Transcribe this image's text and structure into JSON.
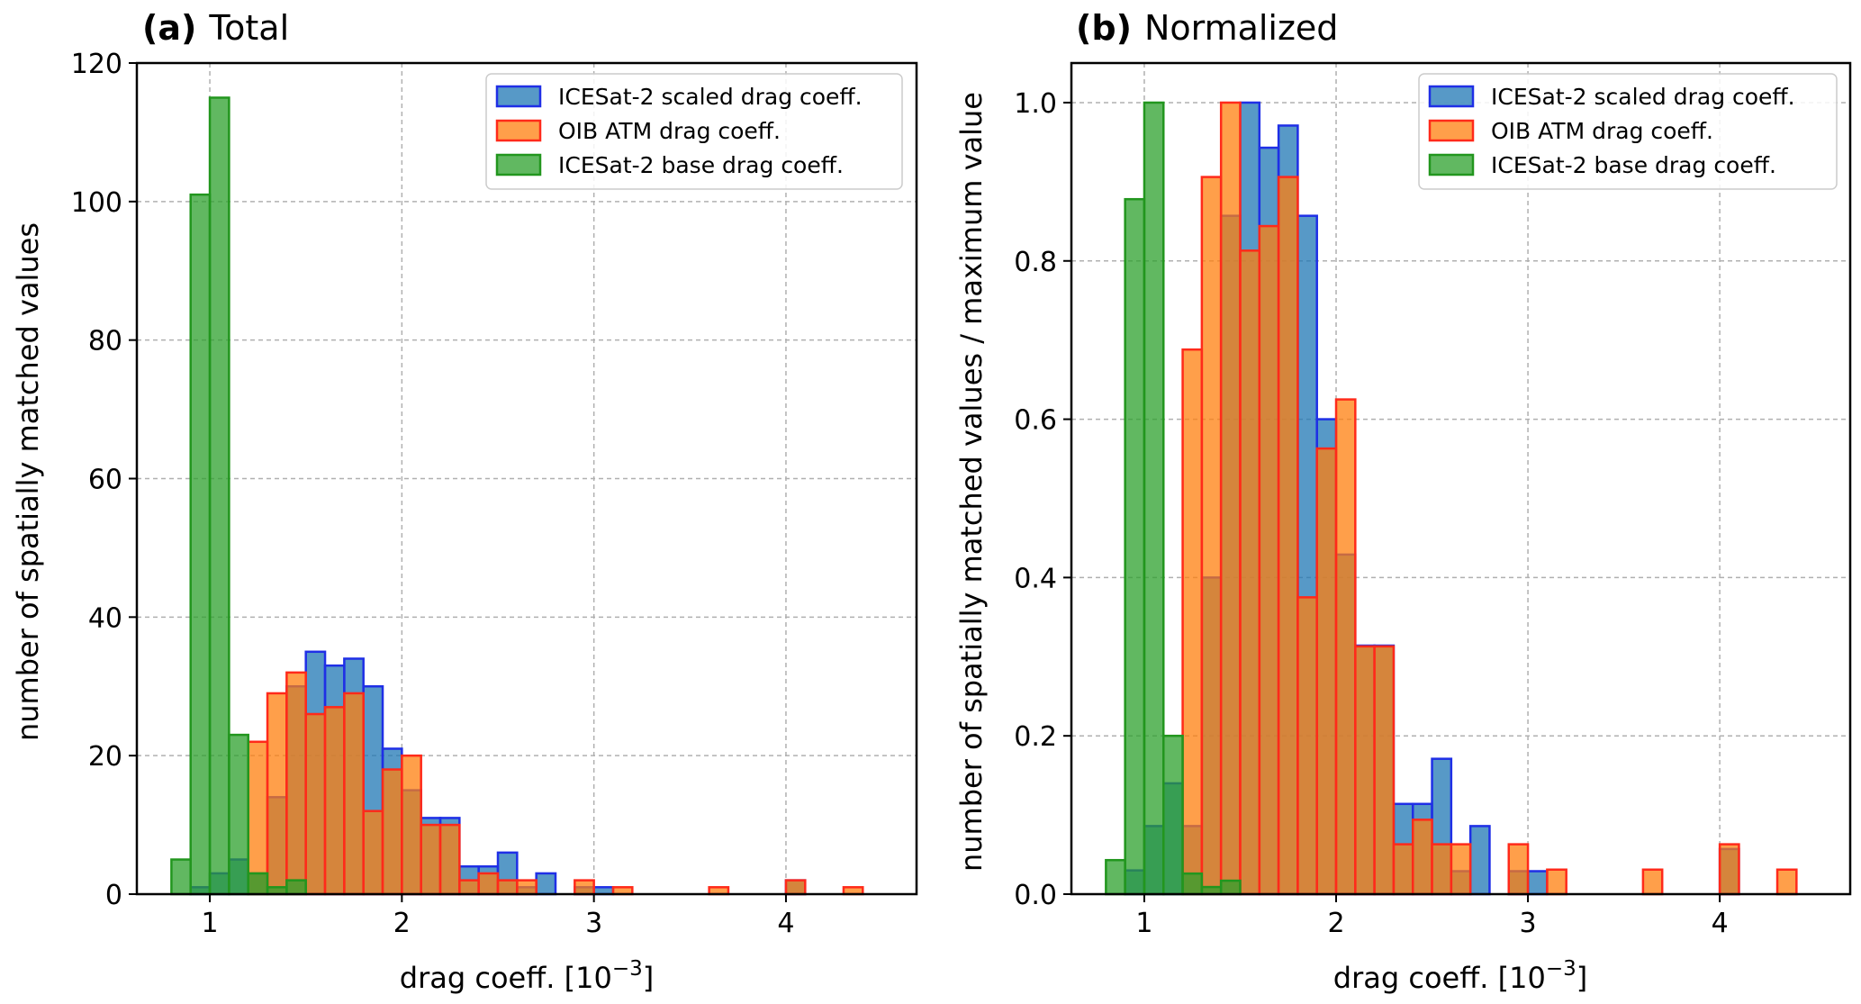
{
  "chart_data": [
    {
      "type": "histogram",
      "panel_label": "(a)",
      "title": "Total",
      "xlabel": "drag coeff. [10",
      "xlabel_exponent": "−3",
      "xlabel_close": "]",
      "ylabel": "number of spatially matched values",
      "xlim": [
        0.62,
        4.68
      ],
      "ylim": [
        0,
        120
      ],
      "xticks": [
        1,
        2,
        3,
        4
      ],
      "xtick_labels": [
        "1",
        "2",
        "3",
        "4"
      ],
      "yticks": [
        0,
        20,
        40,
        60,
        80,
        100,
        120
      ],
      "ytick_labels": [
        "0",
        "20",
        "40",
        "60",
        "80",
        "100",
        "120"
      ],
      "grid": true,
      "legend_position": "top-right",
      "series": [
        {
          "name": "ICESat-2 scaled drag coeff.",
          "fill": "#1f77b4",
          "edge": "#1f2fe6",
          "bin_edges": [
            0.8,
            0.9,
            1.0,
            1.1,
            1.2,
            1.3,
            1.4,
            1.5,
            1.6,
            1.7,
            1.8,
            1.9,
            2.0,
            2.1,
            2.2,
            2.3,
            2.4,
            2.5,
            2.6,
            2.7,
            2.8,
            2.9,
            3.0,
            3.1,
            3.2,
            3.3,
            3.4,
            3.5,
            3.6,
            3.7,
            3.8,
            3.9,
            4.0,
            4.1,
            4.2,
            4.3,
            4.4,
            4.5
          ],
          "counts": [
            0,
            1,
            3,
            5,
            3,
            14,
            30,
            35,
            33,
            34,
            30,
            21,
            15,
            11,
            11,
            4,
            4,
            6,
            1,
            3,
            0,
            1,
            1,
            0,
            0,
            0,
            0,
            0,
            0,
            0,
            0,
            0,
            2,
            0,
            0,
            0,
            0
          ]
        },
        {
          "name": "OIB ATM drag coeff.",
          "fill": "#ff7f0e",
          "edge": "#ff2a1a",
          "bin_edges": [
            0.8,
            0.9,
            1.0,
            1.1,
            1.2,
            1.3,
            1.4,
            1.5,
            1.6,
            1.7,
            1.8,
            1.9,
            2.0,
            2.1,
            2.2,
            2.3,
            2.4,
            2.5,
            2.6,
            2.7,
            2.8,
            2.9,
            3.0,
            3.1,
            3.2,
            3.3,
            3.4,
            3.5,
            3.6,
            3.7,
            3.8,
            3.9,
            4.0,
            4.1,
            4.2,
            4.3,
            4.4,
            4.5
          ],
          "counts": [
            0,
            0,
            0,
            0,
            22,
            29,
            32,
            26,
            27,
            29,
            12,
            18,
            20,
            10,
            10,
            2,
            3,
            2,
            2,
            0,
            0,
            2,
            0,
            1,
            0,
            0,
            0,
            0,
            1,
            0,
            0,
            0,
            2,
            0,
            0,
            1,
            0
          ]
        },
        {
          "name": "ICESat-2 base drag coeff.",
          "fill": "#2ca02c",
          "edge": "#22961e",
          "bin_edges": [
            0.8,
            0.9,
            1.0,
            1.1,
            1.2,
            1.3,
            1.4,
            1.5
          ],
          "counts": [
            5,
            101,
            115,
            23,
            3,
            1,
            2
          ]
        }
      ]
    },
    {
      "type": "histogram",
      "panel_label": "(b)",
      "title": "Normalized",
      "xlabel": "drag coeff. [10",
      "xlabel_exponent": "−3",
      "xlabel_close": "]",
      "ylabel": "number of spatially matched values / maximum value",
      "xlim": [
        0.62,
        4.68
      ],
      "ylim": [
        0,
        1.05
      ],
      "xticks": [
        1,
        2,
        3,
        4
      ],
      "xtick_labels": [
        "1",
        "2",
        "3",
        "4"
      ],
      "yticks": [
        0,
        0.2,
        0.4,
        0.6,
        0.8,
        1.0
      ],
      "ytick_labels": [
        "0.0",
        "0.2",
        "0.4",
        "0.6",
        "0.8",
        "1.0"
      ],
      "grid": true,
      "legend_position": "top-right",
      "series": [
        {
          "name": "ICESat-2 scaled drag coeff.",
          "fill": "#1f77b4",
          "edge": "#1f2fe6",
          "bin_edges": [
            0.8,
            0.9,
            1.0,
            1.1,
            1.2,
            1.3,
            1.4,
            1.5,
            1.6,
            1.7,
            1.8,
            1.9,
            2.0,
            2.1,
            2.2,
            2.3,
            2.4,
            2.5,
            2.6,
            2.7,
            2.8,
            2.9,
            3.0,
            3.1,
            3.2,
            3.3,
            3.4,
            3.5,
            3.6,
            3.7,
            3.8,
            3.9,
            4.0,
            4.1,
            4.2,
            4.3,
            4.4,
            4.5
          ],
          "counts": [
            0,
            0.03,
            0.086,
            0.14,
            0.086,
            0.4,
            0.857,
            1.0,
            0.943,
            0.971,
            0.857,
            0.6,
            0.429,
            0.314,
            0.314,
            0.114,
            0.114,
            0.171,
            0.029,
            0.086,
            0,
            0.029,
            0.029,
            0,
            0,
            0,
            0,
            0,
            0,
            0,
            0,
            0,
            0.057,
            0,
            0,
            0,
            0
          ]
        },
        {
          "name": "OIB ATM drag coeff.",
          "fill": "#ff7f0e",
          "edge": "#ff2a1a",
          "bin_edges": [
            0.8,
            0.9,
            1.0,
            1.1,
            1.2,
            1.3,
            1.4,
            1.5,
            1.6,
            1.7,
            1.8,
            1.9,
            2.0,
            2.1,
            2.2,
            2.3,
            2.4,
            2.5,
            2.6,
            2.7,
            2.8,
            2.9,
            3.0,
            3.1,
            3.2,
            3.3,
            3.4,
            3.5,
            3.6,
            3.7,
            3.8,
            3.9,
            4.0,
            4.1,
            4.2,
            4.3,
            4.4,
            4.5
          ],
          "counts": [
            0,
            0,
            0,
            0,
            0.688,
            0.906,
            1.0,
            0.813,
            0.844,
            0.906,
            0.375,
            0.563,
            0.625,
            0.313,
            0.313,
            0.063,
            0.094,
            0.063,
            0.063,
            0,
            0,
            0.063,
            0,
            0.031,
            0,
            0,
            0,
            0,
            0.031,
            0,
            0,
            0,
            0.063,
            0,
            0,
            0.031,
            0
          ]
        },
        {
          "name": "ICESat-2 base drag coeff.",
          "fill": "#2ca02c",
          "edge": "#22961e",
          "bin_edges": [
            0.8,
            0.9,
            1.0,
            1.1,
            1.2,
            1.3,
            1.4,
            1.5
          ],
          "counts": [
            0.043,
            0.878,
            1.0,
            0.2,
            0.026,
            0.009,
            0.017
          ]
        }
      ]
    }
  ]
}
